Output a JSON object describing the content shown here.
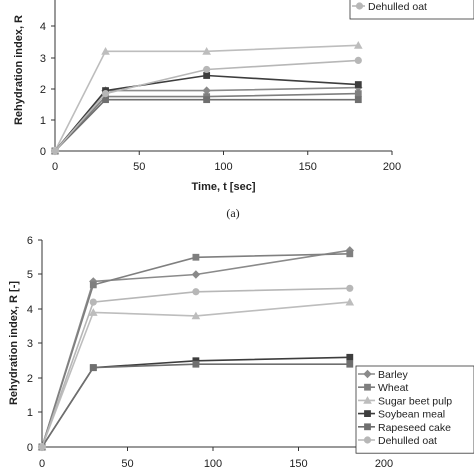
{
  "chart_data": [
    {
      "type": "line",
      "panel": "top",
      "xlabel": "Time, t [sec]",
      "ylabel": "Rehydration index, R",
      "xlim": [
        0,
        200
      ],
      "ylim": [
        0,
        5
      ],
      "x_ticks": [
        "0",
        "50",
        "100",
        "150",
        "200"
      ],
      "y_ticks": [
        "0",
        "1",
        "2",
        "3",
        "4"
      ],
      "x": [
        0,
        30,
        90,
        180
      ],
      "legend": {
        "position": "top-right",
        "entries": [
          "Dehulled oat"
        ]
      },
      "series": [
        {
          "name": "Barley",
          "values": [
            0,
            2.0,
            2.0,
            2.1
          ],
          "color": "#8a8a8a",
          "marker": "diamond"
        },
        {
          "name": "Wheat",
          "values": [
            0,
            1.8,
            1.8,
            1.9
          ],
          "color": "#7f7f7f",
          "marker": "square"
        },
        {
          "name": "Sugar beet pulp",
          "values": [
            0,
            3.3,
            3.3,
            3.5
          ],
          "color": "#bdbdbd",
          "marker": "triangle"
        },
        {
          "name": "Soybean meal",
          "values": [
            0,
            2.0,
            2.5,
            2.2
          ],
          "color": "#3d3d3d",
          "marker": "square"
        },
        {
          "name": "Rapeseed cake",
          "values": [
            0,
            1.7,
            1.7,
            1.7
          ],
          "color": "#6f6f6f",
          "marker": "square"
        },
        {
          "name": "Dehulled oat",
          "values": [
            0,
            1.9,
            2.7,
            3.0
          ],
          "color": "#b7b7b7",
          "marker": "circle"
        }
      ]
    },
    {
      "type": "line",
      "panel": "bottom",
      "xlabel": "",
      "ylabel": "Rehydration index, R [-]",
      "xlim": [
        0,
        200
      ],
      "ylim": [
        0,
        6
      ],
      "x_ticks": [
        "0",
        "50",
        "100",
        "150",
        "200"
      ],
      "y_ticks": [
        "0",
        "1",
        "2",
        "3",
        "4",
        "5",
        "6"
      ],
      "x": [
        0,
        30,
        90,
        180
      ],
      "legend": {
        "position": "bottom-right",
        "entries": [
          "Barley",
          "Wheat",
          "Sugar beet pulp",
          "Soybean meal",
          "Rapeseed cake",
          "Dehulled oat"
        ]
      },
      "series": [
        {
          "name": "Barley",
          "values": [
            0,
            4.8,
            5.0,
            5.7
          ],
          "color": "#8a8a8a",
          "marker": "diamond"
        },
        {
          "name": "Wheat",
          "values": [
            0,
            4.7,
            5.5,
            5.6
          ],
          "color": "#7f7f7f",
          "marker": "square"
        },
        {
          "name": "Sugar beet pulp",
          "values": [
            0,
            3.9,
            3.8,
            4.2
          ],
          "color": "#bdbdbd",
          "marker": "triangle"
        },
        {
          "name": "Soybean meal",
          "values": [
            0,
            2.3,
            2.5,
            2.6
          ],
          "color": "#3d3d3d",
          "marker": "square"
        },
        {
          "name": "Rapeseed cake",
          "values": [
            0,
            2.3,
            2.4,
            2.4
          ],
          "color": "#6f6f6f",
          "marker": "square"
        },
        {
          "name": "Dehulled oat",
          "values": [
            0,
            4.2,
            4.5,
            4.6
          ],
          "color": "#b7b7b7",
          "marker": "circle"
        }
      ]
    }
  ],
  "caption": "(a)"
}
